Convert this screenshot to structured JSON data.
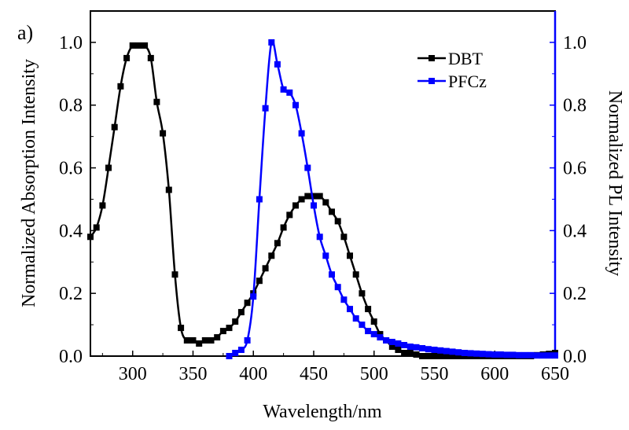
{
  "panel_label": "a)",
  "chart_data": {
    "type": "line",
    "title": "",
    "xlabel": "Wavelength/nm",
    "ylabel_left": "Normalized Absorption Intensity",
    "ylabel_right": "Normalized PL Intensity",
    "xlim": [
      265,
      650
    ],
    "ylim_left": [
      0,
      1.1
    ],
    "ylim_right": [
      0,
      1.1
    ],
    "x_ticks": [
      300,
      350,
      400,
      450,
      500,
      550,
      600,
      650
    ],
    "y_ticks_left": [
      "0.0",
      "0.2",
      "0.4",
      "0.6",
      "0.8",
      "1.0"
    ],
    "y_ticks_right": [
      "0.0",
      "0.2",
      "0.4",
      "0.6",
      "0.8",
      "1.0"
    ],
    "legend_position": "top-right",
    "grid": false,
    "series": [
      {
        "name": "DBT",
        "axis": "left",
        "color": "#000000",
        "x": [
          265,
          270,
          275,
          280,
          285,
          290,
          295,
          300,
          305,
          310,
          315,
          320,
          325,
          330,
          335,
          340,
          345,
          350,
          355,
          360,
          365,
          370,
          375,
          380,
          385,
          390,
          395,
          400,
          405,
          410,
          415,
          420,
          425,
          430,
          435,
          440,
          445,
          450,
          455,
          460,
          465,
          470,
          475,
          480,
          485,
          490,
          495,
          500,
          505,
          510,
          515,
          520,
          525,
          530,
          535,
          540,
          545,
          550,
          555,
          560,
          565,
          570,
          575,
          580,
          585,
          590,
          595,
          600,
          605,
          610,
          615,
          620,
          625,
          630,
          635,
          640,
          645,
          650
        ],
        "values": [
          0.38,
          0.41,
          0.48,
          0.6,
          0.73,
          0.86,
          0.95,
          0.99,
          0.99,
          0.99,
          0.95,
          0.81,
          0.71,
          0.53,
          0.26,
          0.09,
          0.05,
          0.05,
          0.04,
          0.05,
          0.05,
          0.06,
          0.08,
          0.09,
          0.11,
          0.14,
          0.17,
          0.2,
          0.24,
          0.28,
          0.32,
          0.36,
          0.41,
          0.45,
          0.48,
          0.5,
          0.51,
          0.51,
          0.51,
          0.49,
          0.46,
          0.43,
          0.38,
          0.32,
          0.26,
          0.2,
          0.15,
          0.11,
          0.07,
          0.05,
          0.03,
          0.02,
          0.01,
          0.01,
          0.005,
          0.0,
          0.0,
          0.0,
          0.0,
          0.0,
          0.0,
          0.0,
          0.0,
          0.0,
          0.0,
          0.0,
          0.0,
          0.0,
          0.0,
          0.0,
          0.0,
          0.0,
          0.0,
          0.0,
          0.003,
          0.005,
          0.007,
          0.01
        ]
      },
      {
        "name": "PFCz",
        "axis": "right",
        "color": "#0000ff",
        "x": [
          380,
          385,
          390,
          395,
          400,
          405,
          410,
          415,
          420,
          425,
          430,
          435,
          440,
          445,
          450,
          455,
          460,
          465,
          470,
          475,
          480,
          485,
          490,
          495,
          500,
          505,
          510,
          515,
          520,
          525,
          530,
          535,
          540,
          545,
          550,
          555,
          560,
          565,
          570,
          575,
          580,
          585,
          590,
          595,
          600,
          605,
          610,
          615,
          620,
          625,
          630,
          635,
          640,
          645,
          650
        ],
        "values": [
          0.0,
          0.01,
          0.02,
          0.05,
          0.19,
          0.5,
          0.79,
          1.0,
          0.93,
          0.85,
          0.84,
          0.8,
          0.71,
          0.6,
          0.48,
          0.38,
          0.32,
          0.26,
          0.22,
          0.18,
          0.15,
          0.12,
          0.1,
          0.08,
          0.07,
          0.06,
          0.05,
          0.045,
          0.04,
          0.035,
          0.03,
          0.028,
          0.025,
          0.022,
          0.02,
          0.018,
          0.016,
          0.014,
          0.012,
          0.01,
          0.009,
          0.008,
          0.007,
          0.006,
          0.005,
          0.005,
          0.004,
          0.004,
          0.003,
          0.003,
          0.003,
          0.002,
          0.002,
          0.002,
          0.002
        ]
      }
    ]
  }
}
